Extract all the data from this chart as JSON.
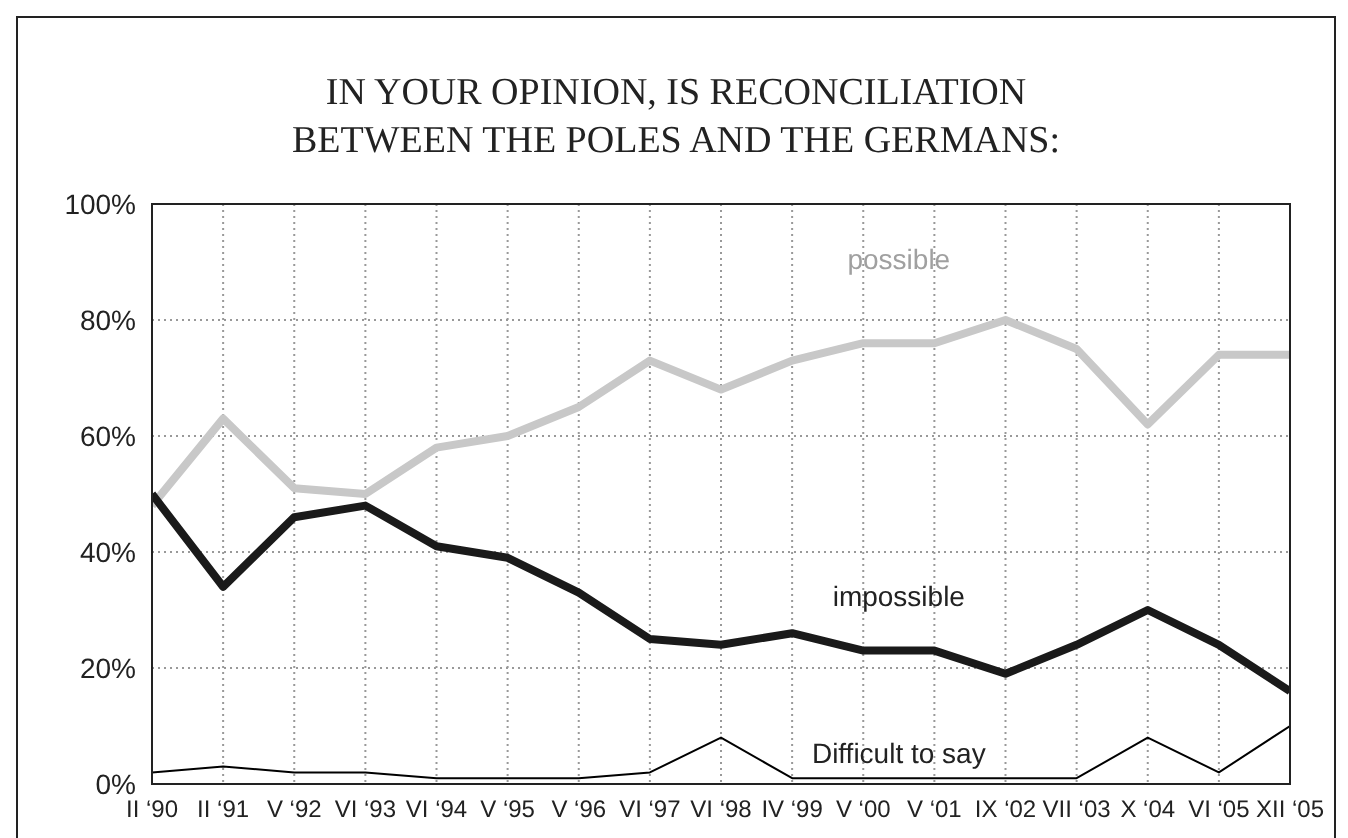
{
  "chart_data": {
    "type": "line",
    "title": "IN YOUR OPINION, IS RECONCILIATION\nBETWEEN THE POLES AND THE GERMANS:",
    "categories": [
      "II ‘90",
      "II ‘91",
      "V ‘92",
      "VI ‘93",
      "VI ‘94",
      "V ‘95",
      "V ‘96",
      "VI ‘97",
      "VI ‘98",
      "IV ‘99",
      "V ‘00",
      "V ‘01",
      "IX ‘02",
      "VII ‘03",
      "X ‘04",
      "VI ‘05",
      "XII ‘05"
    ],
    "series": [
      {
        "name": "possible",
        "color": "#c8c8c8",
        "values": [
          48,
          63,
          51,
          50,
          58,
          60,
          65,
          73,
          68,
          73,
          76,
          76,
          80,
          75,
          62,
          74,
          74
        ]
      },
      {
        "name": "impossible",
        "color": "#1a1a1a",
        "values": [
          50,
          34,
          46,
          48,
          41,
          39,
          33,
          25,
          24,
          26,
          23,
          23,
          19,
          24,
          30,
          24,
          16
        ]
      },
      {
        "name": "Difficult to say",
        "color": "#000000",
        "values": [
          2,
          3,
          2,
          2,
          1,
          1,
          1,
          2,
          8,
          1,
          1,
          1,
          1,
          1,
          8,
          2,
          10
        ]
      }
    ],
    "ylim": [
      0,
      100
    ],
    "yticks": [
      {
        "value": 0,
        "label": "0%"
      },
      {
        "value": 20,
        "label": "20%"
      },
      {
        "value": 40,
        "label": "40%"
      },
      {
        "value": 60,
        "label": "60%"
      },
      {
        "value": 80,
        "label": "80%"
      },
      {
        "value": 100,
        "label": "100%"
      }
    ],
    "grid": true,
    "legend": false,
    "marker": "none",
    "line_style": "solid"
  }
}
